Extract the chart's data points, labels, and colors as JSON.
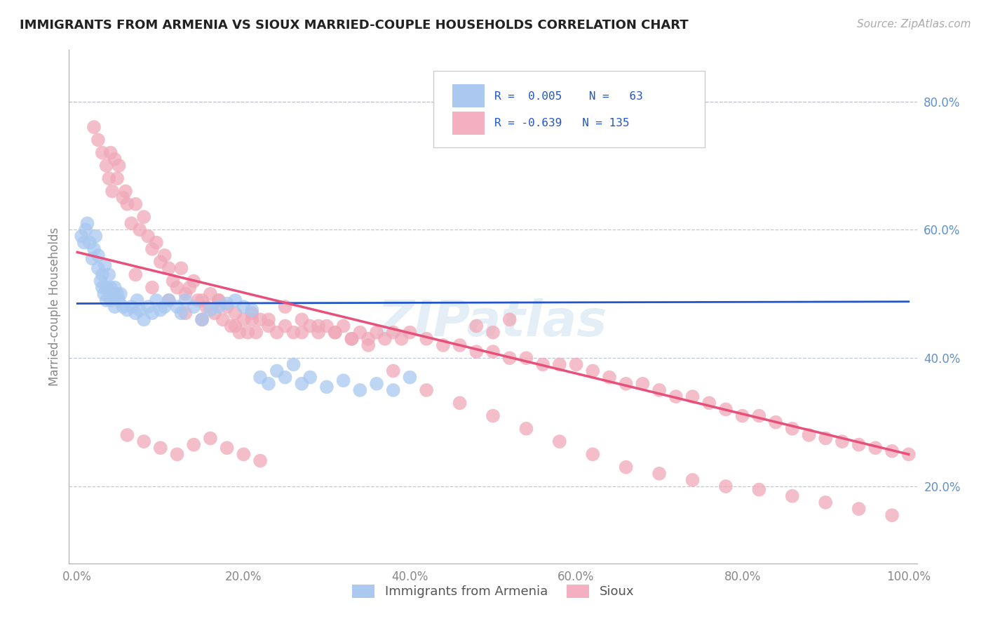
{
  "title": "IMMIGRANTS FROM ARMENIA VS SIOUX MARRIED-COUPLE HOUSEHOLDS CORRELATION CHART",
  "source": "Source: ZipAtlas.com",
  "ylabel": "Married-couple Households",
  "xlim": [
    -0.01,
    1.01
  ],
  "ylim": [
    0.08,
    0.88
  ],
  "xticks": [
    0.0,
    0.2,
    0.4,
    0.6,
    0.8,
    1.0
  ],
  "yticks": [
    0.2,
    0.4,
    0.6,
    0.8
  ],
  "xticklabels": [
    "0.0%",
    "20.0%",
    "40.0%",
    "60.0%",
    "80.0%",
    "100.0%"
  ],
  "yticklabels": [
    "20.0%",
    "40.0%",
    "60.0%",
    "80.0%"
  ],
  "blue_color": "#a8c8f0",
  "pink_color": "#f0a8b8",
  "blue_line_color": "#2255cc",
  "pink_line_color": "#e8507a",
  "background_color": "#ffffff",
  "grid_color": "#c0c8d8",
  "watermark_color": "#c8dff0",
  "blue_line": {
    "x0": 0.0,
    "x1": 1.0,
    "y0": 0.485,
    "y1": 0.488
  },
  "pink_line": {
    "x0": 0.0,
    "x1": 1.0,
    "y0": 0.565,
    "y1": 0.25
  },
  "blue_scatter_x": [
    0.005,
    0.008,
    0.01,
    0.012,
    0.015,
    0.018,
    0.02,
    0.022,
    0.025,
    0.025,
    0.028,
    0.03,
    0.03,
    0.032,
    0.033,
    0.035,
    0.035,
    0.038,
    0.04,
    0.04,
    0.042,
    0.045,
    0.045,
    0.048,
    0.05,
    0.052,
    0.055,
    0.06,
    0.065,
    0.07,
    0.072,
    0.075,
    0.08,
    0.085,
    0.09,
    0.095,
    0.1,
    0.105,
    0.11,
    0.12,
    0.125,
    0.13,
    0.14,
    0.15,
    0.16,
    0.17,
    0.18,
    0.19,
    0.2,
    0.21,
    0.22,
    0.23,
    0.24,
    0.25,
    0.26,
    0.27,
    0.28,
    0.3,
    0.32,
    0.34,
    0.36,
    0.38,
    0.4
  ],
  "blue_scatter_y": [
    0.59,
    0.58,
    0.6,
    0.61,
    0.58,
    0.555,
    0.57,
    0.59,
    0.56,
    0.54,
    0.52,
    0.51,
    0.53,
    0.5,
    0.545,
    0.49,
    0.51,
    0.53,
    0.51,
    0.49,
    0.5,
    0.48,
    0.51,
    0.5,
    0.49,
    0.5,
    0.48,
    0.475,
    0.48,
    0.47,
    0.49,
    0.475,
    0.46,
    0.48,
    0.47,
    0.49,
    0.475,
    0.48,
    0.49,
    0.48,
    0.47,
    0.49,
    0.48,
    0.46,
    0.475,
    0.48,
    0.485,
    0.49,
    0.48,
    0.475,
    0.37,
    0.36,
    0.38,
    0.37,
    0.39,
    0.36,
    0.37,
    0.355,
    0.365,
    0.35,
    0.36,
    0.35,
    0.37
  ],
  "pink_scatter_x": [
    0.02,
    0.025,
    0.03,
    0.035,
    0.038,
    0.04,
    0.042,
    0.045,
    0.048,
    0.05,
    0.055,
    0.058,
    0.06,
    0.065,
    0.07,
    0.075,
    0.08,
    0.085,
    0.09,
    0.095,
    0.1,
    0.105,
    0.11,
    0.115,
    0.12,
    0.125,
    0.13,
    0.135,
    0.14,
    0.145,
    0.15,
    0.155,
    0.16,
    0.165,
    0.17,
    0.175,
    0.18,
    0.185,
    0.19,
    0.195,
    0.2,
    0.205,
    0.21,
    0.215,
    0.22,
    0.23,
    0.24,
    0.25,
    0.26,
    0.27,
    0.28,
    0.29,
    0.3,
    0.31,
    0.32,
    0.33,
    0.34,
    0.35,
    0.36,
    0.37,
    0.38,
    0.39,
    0.4,
    0.42,
    0.44,
    0.46,
    0.48,
    0.5,
    0.52,
    0.54,
    0.56,
    0.58,
    0.6,
    0.62,
    0.64,
    0.66,
    0.68,
    0.7,
    0.72,
    0.74,
    0.76,
    0.78,
    0.8,
    0.82,
    0.84,
    0.86,
    0.88,
    0.9,
    0.92,
    0.94,
    0.96,
    0.98,
    1.0,
    0.07,
    0.09,
    0.11,
    0.13,
    0.15,
    0.17,
    0.19,
    0.21,
    0.23,
    0.25,
    0.27,
    0.29,
    0.31,
    0.33,
    0.35,
    0.38,
    0.42,
    0.46,
    0.5,
    0.54,
    0.58,
    0.62,
    0.66,
    0.7,
    0.74,
    0.78,
    0.82,
    0.86,
    0.9,
    0.94,
    0.98,
    0.06,
    0.08,
    0.1,
    0.12,
    0.14,
    0.16,
    0.18,
    0.2,
    0.22,
    0.48,
    0.5,
    0.52
  ],
  "pink_scatter_y": [
    0.76,
    0.74,
    0.72,
    0.7,
    0.68,
    0.72,
    0.66,
    0.71,
    0.68,
    0.7,
    0.65,
    0.66,
    0.64,
    0.61,
    0.64,
    0.6,
    0.62,
    0.59,
    0.57,
    0.58,
    0.55,
    0.56,
    0.54,
    0.52,
    0.51,
    0.54,
    0.5,
    0.51,
    0.52,
    0.49,
    0.49,
    0.48,
    0.5,
    0.47,
    0.49,
    0.46,
    0.48,
    0.45,
    0.47,
    0.44,
    0.46,
    0.44,
    0.46,
    0.44,
    0.46,
    0.45,
    0.44,
    0.45,
    0.44,
    0.46,
    0.45,
    0.44,
    0.45,
    0.44,
    0.45,
    0.43,
    0.44,
    0.43,
    0.44,
    0.43,
    0.44,
    0.43,
    0.44,
    0.43,
    0.42,
    0.42,
    0.41,
    0.41,
    0.4,
    0.4,
    0.39,
    0.39,
    0.39,
    0.38,
    0.37,
    0.36,
    0.36,
    0.35,
    0.34,
    0.34,
    0.33,
    0.32,
    0.31,
    0.31,
    0.3,
    0.29,
    0.28,
    0.275,
    0.27,
    0.265,
    0.26,
    0.255,
    0.25,
    0.53,
    0.51,
    0.49,
    0.47,
    0.46,
    0.49,
    0.45,
    0.47,
    0.46,
    0.48,
    0.44,
    0.45,
    0.44,
    0.43,
    0.42,
    0.38,
    0.35,
    0.33,
    0.31,
    0.29,
    0.27,
    0.25,
    0.23,
    0.22,
    0.21,
    0.2,
    0.195,
    0.185,
    0.175,
    0.165,
    0.155,
    0.28,
    0.27,
    0.26,
    0.25,
    0.265,
    0.275,
    0.26,
    0.25,
    0.24,
    0.45,
    0.44,
    0.46
  ]
}
